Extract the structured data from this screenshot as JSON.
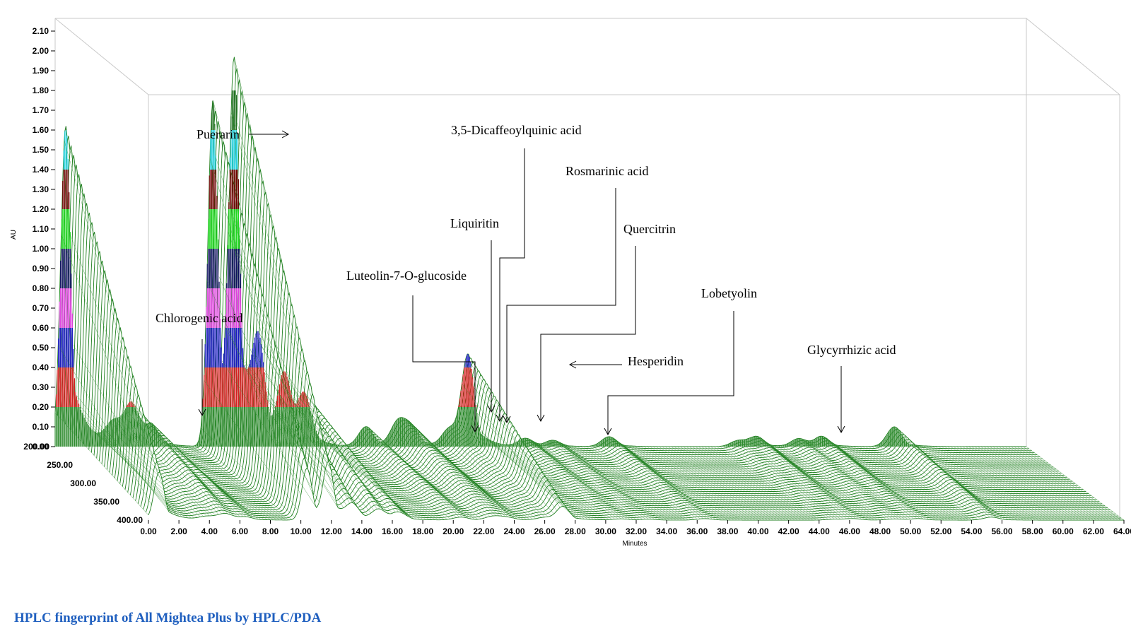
{
  "caption": "HPLC fingerprint of All Mightea Plus by HPLC/PDA",
  "chart_data": {
    "type": "area",
    "xlabel": "Minutes",
    "ylabel": "AU",
    "xlim": [
      0,
      64
    ],
    "ylim": [
      0,
      2.1
    ],
    "zlim": [
      200,
      400
    ],
    "x_ticks": [
      "0.00",
      "2.00",
      "4.00",
      "6.00",
      "8.00",
      "10.00",
      "12.00",
      "14.00",
      "16.00",
      "18.00",
      "20.00",
      "22.00",
      "24.00",
      "26.00",
      "28.00",
      "30.00",
      "32.00",
      "34.00",
      "36.00",
      "38.00",
      "40.00",
      "42.00",
      "44.00",
      "46.00",
      "48.00",
      "50.00",
      "52.00",
      "54.00",
      "56.00",
      "58.00",
      "60.00",
      "62.00",
      "64.00"
    ],
    "y_ticks": [
      "0.00",
      "0.10",
      "0.20",
      "0.30",
      "0.40",
      "0.50",
      "0.60",
      "0.70",
      "0.80",
      "0.90",
      "1.00",
      "1.10",
      "1.20",
      "1.30",
      "1.40",
      "1.50",
      "1.60",
      "1.70",
      "1.80",
      "1.90",
      "2.00",
      "2.10"
    ],
    "z_ticks": [
      "200.00",
      "250.00",
      "300.00",
      "350.00",
      "400.00"
    ],
    "peaks_front": [
      {
        "x": 0.7,
        "y": 1.62
      },
      {
        "x": 3.8,
        "y": 0.11
      },
      {
        "x": 5.0,
        "y": 0.21
      },
      {
        "x": 6.3,
        "y": 0.1
      },
      {
        "x": 10.4,
        "y": 1.75
      },
      {
        "x": 11.8,
        "y": 1.84
      },
      {
        "x": 13.4,
        "y": 0.45
      },
      {
        "x": 15.1,
        "y": 0.33
      },
      {
        "x": 16.4,
        "y": 0.24
      },
      {
        "x": 20.5,
        "y": 0.1
      },
      {
        "x": 22.6,
        "y": 0.12
      },
      {
        "x": 23.5,
        "y": 0.09
      },
      {
        "x": 26.0,
        "y": 0.09
      },
      {
        "x": 27.2,
        "y": 0.46
      },
      {
        "x": 31.0,
        "y": 0.04
      },
      {
        "x": 32.8,
        "y": 0.03
      },
      {
        "x": 36.5,
        "y": 0.05
      },
      {
        "x": 45.0,
        "y": 0.03
      },
      {
        "x": 46.2,
        "y": 0.05
      },
      {
        "x": 49.0,
        "y": 0.04
      },
      {
        "x": 50.5,
        "y": 0.05
      },
      {
        "x": 55.3,
        "y": 0.1
      }
    ],
    "band_colors": [
      "#2e8b2e",
      "#d42020",
      "#1818c0",
      "#e040e0",
      "#101060",
      "#20d820",
      "#700000",
      "#20d0e0",
      "#207020"
    ],
    "annotations": [
      {
        "label": "Puerarin"
      },
      {
        "label": "Chlorogenic acid"
      },
      {
        "label": "3,5-Dicaffeoylquinic acid"
      },
      {
        "label": "Liquiritin"
      },
      {
        "label": "Luteolin-7-O-glucoside"
      },
      {
        "label": "Rosmarinic acid"
      },
      {
        "label": "Quercitrin"
      },
      {
        "label": "Hesperidin"
      },
      {
        "label": "Lobetyolin"
      },
      {
        "label": "Glycyrrhizic acid"
      }
    ]
  }
}
